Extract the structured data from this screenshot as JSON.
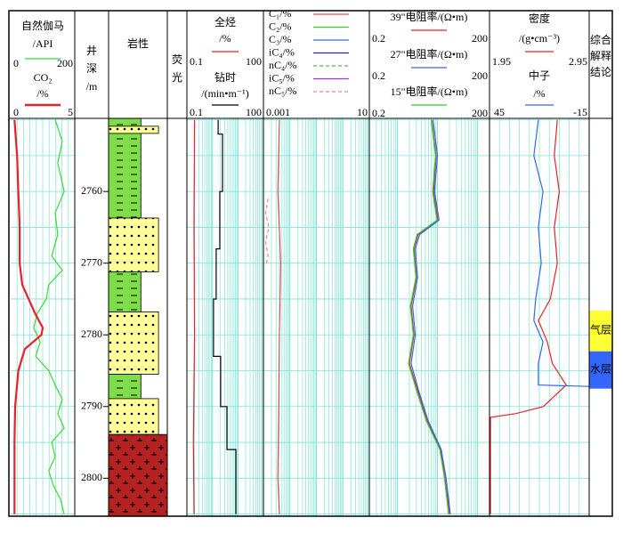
{
  "depth": {
    "ylim": [
      2749.8,
      2805.3
    ],
    "ticks": [
      2760,
      2770,
      2780,
      2790,
      2800
    ],
    "grid": [
      2750,
      2755,
      2760,
      2765,
      2770,
      2775,
      2780,
      2785,
      2790,
      2795,
      2800,
      2805
    ]
  },
  "columns": [
    {
      "curves": [
        {
          "name": "自然伽马",
          "unit": "/API",
          "color": "#33dd33",
          "xlim": [
            0,
            200
          ],
          "depths": [
            2750,
            2753,
            2756,
            2760,
            2763,
            2766,
            2769,
            2771,
            2773,
            2775,
            2777,
            2779,
            2781,
            2783,
            2785,
            2787,
            2789,
            2791,
            2793,
            2795,
            2797,
            2799,
            2801,
            2803,
            2805
          ],
          "values": [
            139,
            161,
            147,
            167,
            139,
            147,
            128,
            161,
            119,
            111,
            83,
            72,
            92,
            78,
            119,
            139,
            161,
            147,
            167,
            128,
            139,
            119,
            133,
            156,
            167
          ]
        },
        {
          "name": "CO₂",
          "unit": "/%",
          "color": "#e8202a",
          "xlim": [
            0,
            5
          ],
          "thick": true,
          "depths": [
            2750,
            2755,
            2760,
            2765,
            2770,
            2773,
            2775,
            2777,
            2779,
            2780,
            2782,
            2785,
            2790,
            2795,
            2800,
            2805
          ],
          "values": [
            0.3,
            0.5,
            0.6,
            0.7,
            0.7,
            0.9,
            1.4,
            1.9,
            2.5,
            2.4,
            1.1,
            0.6,
            0.35,
            0.3,
            0.3,
            0.3
          ]
        }
      ]
    },
    {
      "title": [
        "井",
        "深",
        "/m"
      ]
    },
    {
      "title": "岩性",
      "layers": [
        {
          "top": 2749.8,
          "bottom": 2750.9,
          "pattern": "dashes",
          "color": "#7fdc4a"
        },
        {
          "top": 2750.9,
          "bottom": 2751.9,
          "pattern": "dots",
          "color": "#ffff99"
        },
        {
          "top": 2751.9,
          "bottom": 2763.7,
          "pattern": "dashes",
          "color": "#7fdc4a"
        },
        {
          "top": 2763.7,
          "bottom": 2771.2,
          "pattern": "dots",
          "color": "#ffff99"
        },
        {
          "top": 2771.2,
          "bottom": 2776.8,
          "pattern": "dashes",
          "color": "#7fdc4a"
        },
        {
          "top": 2776.8,
          "bottom": 2785.5,
          "pattern": "dots",
          "color": "#ffff99"
        },
        {
          "top": 2785.5,
          "bottom": 2788.9,
          "pattern": "dashes",
          "color": "#7fdc4a"
        },
        {
          "top": 2788.9,
          "bottom": 2793.9,
          "pattern": "dots",
          "color": "#ffff99"
        },
        {
          "top": 2793.9,
          "bottom": 2805.3,
          "pattern": "crosses",
          "color": "#b22222"
        }
      ]
    },
    {
      "title": [
        "荧",
        "光"
      ]
    },
    {
      "curves": [
        {
          "name": "全烃",
          "unit": "/%",
          "color": "#e8202a",
          "xlim": [
            0.1,
            100
          ],
          "log": true,
          "depths": [
            2750,
            2765,
            2780,
            2795,
            2805
          ],
          "values": [
            0.2,
            0.19,
            0.2,
            0.18,
            0.19
          ]
        },
        {
          "name": "钻时",
          "unit": "/(min•m⁻¹)",
          "color": "#000000",
          "xlim": [
            0.1,
            100
          ],
          "log": true,
          "depths": [
            2750,
            2752,
            2752,
            2760,
            2760,
            2768,
            2768,
            2775,
            2775,
            2783,
            2783,
            2790,
            2790,
            2796,
            2796,
            2805
          ],
          "values": [
            1.67,
            1.67,
            2.48,
            2.48,
            1.95,
            1.95,
            1.41,
            1.41,
            1.1,
            1.1,
            2.1,
            2.1,
            3.7,
            3.7,
            8.3,
            8.3
          ]
        }
      ]
    },
    {
      "xlim": [
        0.001,
        10
      ],
      "log": true,
      "curves": [
        {
          "name": "C₁/%",
          "color": "#e05050",
          "depths": [
            2750,
            2760,
            2770,
            2780,
            2790,
            2800,
            2805
          ],
          "values": [
            0.004,
            0.0035,
            0.0045,
            0.004,
            0.0038,
            0.0035,
            0.004
          ]
        },
        {
          "name": "C₂/%",
          "color": "#33cc33"
        },
        {
          "name": "C₃/%",
          "color": "#3366ee"
        },
        {
          "name": "iC₄/%",
          "color": "#2222aa"
        },
        {
          "name": "nC₄/%",
          "color": "#55bb55",
          "dash": true
        },
        {
          "name": "iC₅/%",
          "color": "#aa33cc"
        },
        {
          "name": "nC₅/%",
          "color": "#ee8888",
          "dash": true,
          "depths": [
            2761,
            2763,
            2765,
            2767,
            2769,
            2770
          ],
          "values": [
            0.0015,
            0.0012,
            0.0016,
            0.0012,
            0.0015,
            0.0013
          ]
        }
      ]
    },
    {
      "curves": [
        {
          "name": "39\"电阻率/(Ω•m)",
          "color": "#e8202a",
          "xlim": [
            0.2,
            200
          ],
          "log": true,
          "depths": [
            2750,
            2755,
            2760,
            2764,
            2766,
            2768,
            2772,
            2776,
            2780,
            2784,
            2788,
            2792,
            2796,
            2800,
            2805
          ],
          "values": [
            7.2,
            9.3,
            8.0,
            10.3,
            3.3,
            2.6,
            3.0,
            2.2,
            2.6,
            2.0,
            3.3,
            5.6,
            12.0,
            15.5,
            20
          ]
        },
        {
          "name": "27\"电阻率/(Ω•m)",
          "color": "#3366ee",
          "xlim": [
            0.2,
            200
          ],
          "log": true,
          "depths": [
            2750,
            2755,
            2760,
            2764,
            2766,
            2768,
            2772,
            2776,
            2780,
            2784,
            2788,
            2792,
            2796,
            2800,
            2805
          ],
          "values": [
            7.8,
            10.0,
            8.5,
            11.0,
            3.6,
            2.8,
            3.2,
            2.4,
            2.8,
            2.2,
            3.5,
            5.9,
            12.5,
            16.5,
            21
          ]
        },
        {
          "name": "15\"电阻率/(Ω•m)",
          "color": "#33cc33",
          "xlim": [
            0.2,
            200
          ],
          "log": true,
          "depths": [
            2750,
            2755,
            2760,
            2764,
            2766,
            2768,
            2772,
            2776,
            2780,
            2784,
            2788,
            2792,
            2796,
            2800,
            2805
          ],
          "values": [
            7.0,
            9.0,
            7.6,
            9.8,
            3.1,
            2.5,
            2.9,
            2.1,
            2.5,
            1.9,
            3.1,
            5.3,
            11.5,
            15,
            19
          ]
        }
      ]
    },
    {
      "curves": [
        {
          "name": "密度",
          "unit": "/(g•cm⁻³)",
          "color": "#e8202a",
          "xlim": [
            1.95,
            2.95
          ],
          "depths": [
            2750,
            2755,
            2760,
            2765,
            2770,
            2775,
            2778,
            2781,
            2784,
            2787,
            2790,
            2791,
            2791.5,
            2805
          ],
          "values": [
            2.63,
            2.6,
            2.65,
            2.6,
            2.63,
            2.56,
            2.44,
            2.53,
            2.58,
            2.72,
            2.49,
            2.21,
            1.96,
            1.96
          ]
        },
        {
          "name": "中子",
          "unit": "/%",
          "color": "#3366ee",
          "xlim": [
            45,
            -15
          ],
          "depths": [
            2750,
            2755,
            2760,
            2765,
            2770,
            2775,
            2778,
            2781,
            2784,
            2787,
            2787.2
          ],
          "values": [
            15.6,
            18.3,
            12.8,
            15.6,
            13.9,
            17.2,
            18.3,
            12.8,
            15.6,
            15.6,
            -15
          ]
        }
      ]
    },
    {
      "title": [
        "综合",
        "解释",
        "结论"
      ],
      "zones": [
        {
          "label": "气层",
          "top": 2776.6,
          "bottom": 2782.3,
          "color": "#ffff33"
        },
        {
          "label": "水层",
          "top": 2782.3,
          "bottom": 2787.5,
          "color": "#3366ff"
        }
      ]
    }
  ]
}
